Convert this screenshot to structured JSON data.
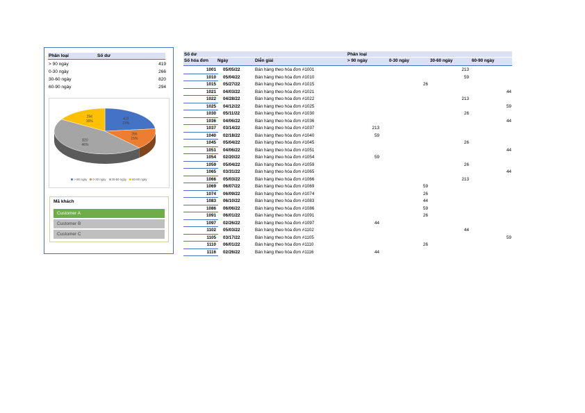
{
  "summary": {
    "headers": {
      "category": "Phân loại",
      "balance": "Số dư"
    },
    "rows": [
      {
        "label": "> 90 ngày",
        "value": "419"
      },
      {
        "label": "0-30 ngày",
        "value": "266"
      },
      {
        "label": "30-60 ngày",
        "value": "820"
      },
      {
        "label": "60-90 ngày",
        "value": "294"
      }
    ]
  },
  "chart_data": {
    "type": "pie",
    "title": "",
    "categories": [
      "> 90 ngày",
      "0-30 ngày",
      "30-60 ngày",
      "60-90 ngày"
    ],
    "values": [
      419,
      266,
      820,
      294
    ],
    "data_labels": [
      {
        "value": "419",
        "percent": "23%"
      },
      {
        "value": "266",
        "percent": "15%"
      },
      {
        "value": "820",
        "percent": "46%"
      },
      {
        "value": "294",
        "percent": "16%"
      }
    ],
    "colors": [
      "#4472c4",
      "#ed7d31",
      "#a5a5a5",
      "#ffc000"
    ],
    "legend_position": "bottom",
    "style": "3d"
  },
  "slicer": {
    "title": "Mã khách",
    "items": [
      {
        "label": "Customer A",
        "selected": true
      },
      {
        "label": "Customer B",
        "selected": false
      },
      {
        "label": "Customer C",
        "selected": false
      }
    ],
    "colors": {
      "selected": "#70ad47",
      "unselected": "#bfbfbf"
    }
  },
  "ledger": {
    "header_row1": {
      "balance": "Số dư",
      "category": "Phân loại"
    },
    "header_row2": {
      "invoice": "Số hóa đơn",
      "date": "Ngày",
      "description": "Diễn giải",
      "b90": "> 90 ngày",
      "b0_30": "0-30 ngày",
      "b30_60": "30-60 ngày",
      "b60_90": "60-90 ngày"
    },
    "rows": [
      {
        "invoice": "1001",
        "date": "05/05/22",
        "description": "Bán hàng theo hóa đơn  #1001",
        "b90": "",
        "b0_30": "",
        "b30_60": "213",
        "b60_90": ""
      },
      {
        "invoice": "1010",
        "date": "05/04/22",
        "description": "Bán hàng theo hóa đơn  #1010",
        "b90": "",
        "b0_30": "",
        "b30_60": "59",
        "b60_90": ""
      },
      {
        "invoice": "1015",
        "date": "05/27/22",
        "description": "Bán hàng theo hóa đơn  #1015",
        "b90": "",
        "b0_30": "26",
        "b30_60": "",
        "b60_90": ""
      },
      {
        "invoice": "1021",
        "date": "04/03/22",
        "description": "Bán hàng theo hóa đơn  #1021",
        "b90": "",
        "b0_30": "",
        "b30_60": "",
        "b60_90": "44"
      },
      {
        "invoice": "1022",
        "date": "04/28/22",
        "description": "Bán hàng theo hóa đơn  #1022",
        "b90": "",
        "b0_30": "",
        "b30_60": "213",
        "b60_90": ""
      },
      {
        "invoice": "1025",
        "date": "04/12/22",
        "description": "Bán hàng theo hóa đơn  #1025",
        "b90": "",
        "b0_30": "",
        "b30_60": "",
        "b60_90": "59"
      },
      {
        "invoice": "1030",
        "date": "05/11/22",
        "description": "Bán hàng theo hóa đơn  #1030",
        "b90": "",
        "b0_30": "",
        "b30_60": "26",
        "b60_90": ""
      },
      {
        "invoice": "1036",
        "date": "04/06/22",
        "description": "Bán hàng theo hóa đơn  #1036",
        "b90": "",
        "b0_30": "",
        "b30_60": "",
        "b60_90": "44"
      },
      {
        "invoice": "1037",
        "date": "03/14/22",
        "description": "Bán hàng theo hóa đơn  #1037",
        "b90": "213",
        "b0_30": "",
        "b30_60": "",
        "b60_90": ""
      },
      {
        "invoice": "1040",
        "date": "02/18/22",
        "description": "Bán hàng theo hóa đơn  #1040",
        "b90": "59",
        "b0_30": "",
        "b30_60": "",
        "b60_90": ""
      },
      {
        "invoice": "1045",
        "date": "05/04/22",
        "description": "Bán hàng theo hóa đơn  #1045",
        "b90": "",
        "b0_30": "",
        "b30_60": "26",
        "b60_90": ""
      },
      {
        "invoice": "1051",
        "date": "04/06/22",
        "description": "Bán hàng theo hóa đơn  #1051",
        "b90": "",
        "b0_30": "",
        "b30_60": "",
        "b60_90": "44"
      },
      {
        "invoice": "1054",
        "date": "02/20/22",
        "description": "Bán hàng theo hóa đơn  #1054",
        "b90": "59",
        "b0_30": "",
        "b30_60": "",
        "b60_90": ""
      },
      {
        "invoice": "1059",
        "date": "05/04/22",
        "description": "Bán hàng theo hóa đơn  #1059",
        "b90": "",
        "b0_30": "",
        "b30_60": "26",
        "b60_90": ""
      },
      {
        "invoice": "1065",
        "date": "03/31/22",
        "description": "Bán hàng theo hóa đơn  #1065",
        "b90": "",
        "b0_30": "",
        "b30_60": "",
        "b60_90": "44"
      },
      {
        "invoice": "1066",
        "date": "05/03/22",
        "description": "Bán hàng theo hóa đơn  #1066",
        "b90": "",
        "b0_30": "",
        "b30_60": "213",
        "b60_90": ""
      },
      {
        "invoice": "1069",
        "date": "06/07/22",
        "description": "Bán hàng theo hóa đơn  #1069",
        "b90": "",
        "b0_30": "59",
        "b30_60": "",
        "b60_90": ""
      },
      {
        "invoice": "1074",
        "date": "06/09/22",
        "description": "Bán hàng theo hóa đơn  #1074",
        "b90": "",
        "b0_30": "26",
        "b30_60": "",
        "b60_90": ""
      },
      {
        "invoice": "1083",
        "date": "06/10/22",
        "description": "Bán hàng theo hóa đơn  #1083",
        "b90": "",
        "b0_30": "44",
        "b30_60": "",
        "b60_90": ""
      },
      {
        "invoice": "1086",
        "date": "06/06/22",
        "description": "Bán hàng theo hóa đơn  #1086",
        "b90": "",
        "b0_30": "59",
        "b30_60": "",
        "b60_90": ""
      },
      {
        "invoice": "1091",
        "date": "06/01/22",
        "description": "Bán hàng theo hóa đơn  #1091",
        "b90": "",
        "b0_30": "26",
        "b30_60": "",
        "b60_90": ""
      },
      {
        "invoice": "1097",
        "date": "02/26/22",
        "description": "Bán hàng theo hóa đơn  #1097",
        "b90": "44",
        "b0_30": "",
        "b30_60": "",
        "b60_90": ""
      },
      {
        "invoice": "1102",
        "date": "05/03/22",
        "description": "Bán hàng theo hóa đơn  #1102",
        "b90": "",
        "b0_30": "",
        "b30_60": "44",
        "b60_90": ""
      },
      {
        "invoice": "1105",
        "date": "03/17/22",
        "description": "Bán hàng theo hóa đơn  #1105",
        "b90": "",
        "b0_30": "",
        "b30_60": "",
        "b60_90": "59"
      },
      {
        "invoice": "1110",
        "date": "06/01/22",
        "description": "Bán hàng theo hóa đơn  #1110",
        "b90": "",
        "b0_30": "26",
        "b30_60": "",
        "b60_90": ""
      },
      {
        "invoice": "1116",
        "date": "02/26/22",
        "description": "Bán hàng theo hóa đơn  #1116",
        "b90": "44",
        "b0_30": "",
        "b30_60": "",
        "b60_90": ""
      }
    ]
  }
}
